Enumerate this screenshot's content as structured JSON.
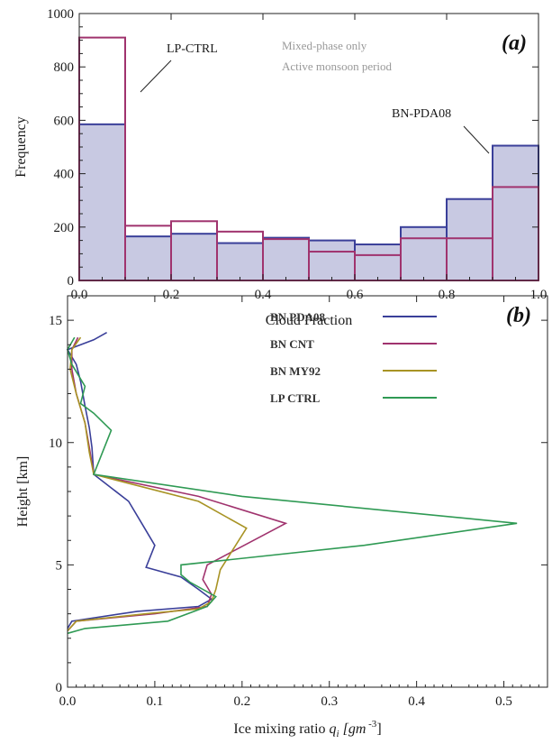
{
  "chart_data": [
    {
      "id": "a",
      "type": "bar",
      "panel_label": "(a)",
      "notes": [
        "Mixed-phase only",
        "Active monsoon period"
      ],
      "xlabel": "Cloud Fraction",
      "ylabel": "Frequency",
      "xlim": [
        0,
        1
      ],
      "ylim": [
        0,
        1000
      ],
      "xticks": [
        "0.0",
        "0.2",
        "0.4",
        "0.6",
        "0.8",
        "1.0"
      ],
      "yticks": [
        "0",
        "200",
        "400",
        "600",
        "800",
        "1000"
      ],
      "bin_edges": [
        0,
        0.1,
        0.2,
        0.3,
        0.4,
        0.5,
        0.6,
        0.7,
        0.8,
        0.9,
        1.0
      ],
      "series": [
        {
          "name": "BN-PDA08",
          "color": "#3a3f99",
          "fill": "#c8c9e2",
          "values": [
            585,
            165,
            175,
            140,
            160,
            150,
            135,
            200,
            305,
            505
          ]
        },
        {
          "name": "LP-CTRL",
          "color": "#a0336e",
          "fill": "none",
          "values": [
            910,
            205,
            222,
            183,
            155,
            108,
            95,
            158,
            158,
            350
          ]
        }
      ],
      "annotations": [
        "LP-CTRL",
        "BN-PDA08"
      ]
    },
    {
      "id": "b",
      "type": "line",
      "panel_label": "(b)",
      "xlabel": "Ice mixing ratio",
      "xlabel_symbol": "q",
      "xlabel_sub": "i",
      "xlabel_unit_pre": "[gm",
      "xlabel_unit_exp": "-3",
      "xlabel_unit_post": "]",
      "ylabel": "Height   [km]",
      "xlim": [
        0,
        0.55
      ],
      "ylim": [
        0,
        16
      ],
      "xticks": [
        "0.0",
        "0.1",
        "0.2",
        "0.3",
        "0.4",
        "0.5"
      ],
      "yticks": [
        "0",
        "5",
        "10",
        "15"
      ],
      "legend_placement": "top-right",
      "series": [
        {
          "name": "BN  PDA08",
          "color": "#3a3f99",
          "points": [
            [
              0.0,
              2.4
            ],
            [
              0.005,
              2.7
            ],
            [
              0.08,
              3.1
            ],
            [
              0.15,
              3.3
            ],
            [
              0.165,
              3.6
            ],
            [
              0.15,
              4.0
            ],
            [
              0.13,
              4.5
            ],
            [
              0.09,
              4.9
            ],
            [
              0.1,
              5.8
            ],
            [
              0.085,
              6.7
            ],
            [
              0.07,
              7.6
            ],
            [
              0.03,
              8.7
            ],
            [
              0.028,
              9.8
            ],
            [
              0.025,
              10.6
            ],
            [
              0.02,
              11.5
            ],
            [
              0.015,
              12.5
            ],
            [
              0.01,
              13.2
            ],
            [
              0.0,
              13.8
            ],
            [
              0.03,
              14.2
            ],
            [
              0.045,
              14.5
            ]
          ]
        },
        {
          "name": "BN  CNT",
          "color": "#a0336e",
          "points": [
            [
              0.0,
              2.3
            ],
            [
              0.01,
              2.7
            ],
            [
              0.1,
              3.0
            ],
            [
              0.16,
              3.3
            ],
            [
              0.165,
              3.8
            ],
            [
              0.155,
              4.4
            ],
            [
              0.16,
              5.0
            ],
            [
              0.25,
              6.7
            ],
            [
              0.15,
              7.8
            ],
            [
              0.03,
              8.7
            ],
            [
              0.025,
              9.8
            ],
            [
              0.02,
              10.8
            ],
            [
              0.01,
              12.0
            ],
            [
              0.005,
              13.0
            ],
            [
              0.005,
              13.8
            ],
            [
              0.012,
              14.3
            ]
          ]
        },
        {
          "name": "BN  MY92",
          "color": "#a89324",
          "points": [
            [
              0.0,
              2.3
            ],
            [
              0.01,
              2.7
            ],
            [
              0.09,
              3.0
            ],
            [
              0.15,
              3.2
            ],
            [
              0.165,
              3.5
            ],
            [
              0.17,
              4.0
            ],
            [
              0.175,
              4.8
            ],
            [
              0.205,
              6.5
            ],
            [
              0.15,
              7.6
            ],
            [
              0.03,
              8.7
            ],
            [
              0.025,
              9.6
            ],
            [
              0.02,
              10.8
            ],
            [
              0.01,
              12.0
            ],
            [
              0.003,
              13.0
            ],
            [
              0.005,
              13.8
            ],
            [
              0.015,
              14.3
            ]
          ]
        },
        {
          "name": "LP  CTRL",
          "color": "#2f9a54",
          "points": [
            [
              0.0,
              2.2
            ],
            [
              0.02,
              2.4
            ],
            [
              0.115,
              2.7
            ],
            [
              0.16,
              3.3
            ],
            [
              0.17,
              3.7
            ],
            [
              0.14,
              4.3
            ],
            [
              0.13,
              4.6
            ],
            [
              0.13,
              5.0
            ],
            [
              0.34,
              5.8
            ],
            [
              0.515,
              6.7
            ],
            [
              0.2,
              7.8
            ],
            [
              0.03,
              8.7
            ],
            [
              0.04,
              9.6
            ],
            [
              0.05,
              10.5
            ],
            [
              0.03,
              11.2
            ],
            [
              0.015,
              11.6
            ],
            [
              0.02,
              12.3
            ],
            [
              0.005,
              13.2
            ],
            [
              0.0,
              13.8
            ],
            [
              0.008,
              14.3
            ]
          ]
        }
      ]
    }
  ]
}
